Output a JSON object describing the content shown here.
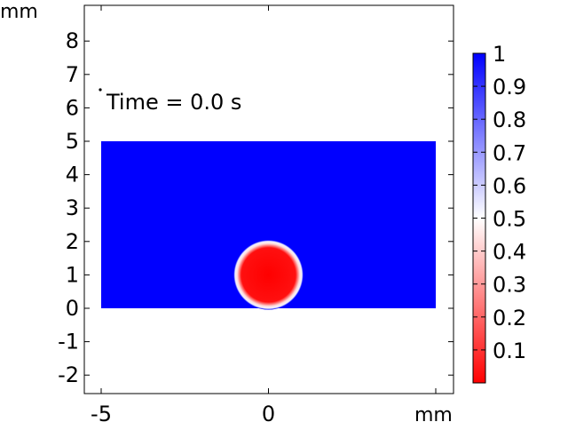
{
  "chart_data": {
    "type": "heatmap",
    "title": "",
    "annotation": "Time = 0.0 s",
    "x_unit_label": "mm",
    "y_unit_label": "mm",
    "xlim": [
      -5,
      5
    ],
    "ylim": [
      -2.5,
      9
    ],
    "x_ticks": [
      -5,
      0
    ],
    "y_ticks": [
      -2,
      -1,
      0,
      1,
      2,
      3,
      4,
      5,
      6,
      7,
      8
    ],
    "domain_rect": {
      "xmin": -5,
      "xmax": 5,
      "ymin": 0,
      "ymax": 5
    },
    "circle": {
      "cx": 0,
      "cy": 1,
      "r": 1,
      "inside_value": 0,
      "outside_value": 1
    },
    "colorbar": {
      "min": 0,
      "max": 1,
      "ticks": [
        0.1,
        0.2,
        0.3,
        0.4,
        0.5,
        0.6,
        0.7,
        0.8,
        0.9,
        1
      ],
      "tick_labels": [
        "0.1",
        "0.2",
        "0.3",
        "0.4",
        "0.5",
        "0.6",
        "0.7",
        "0.8",
        "0.9",
        "1"
      ],
      "color_low": "#ff0000",
      "color_mid": "#ffffff",
      "color_high": "#0000ff"
    },
    "grid": false,
    "legend": "right"
  }
}
